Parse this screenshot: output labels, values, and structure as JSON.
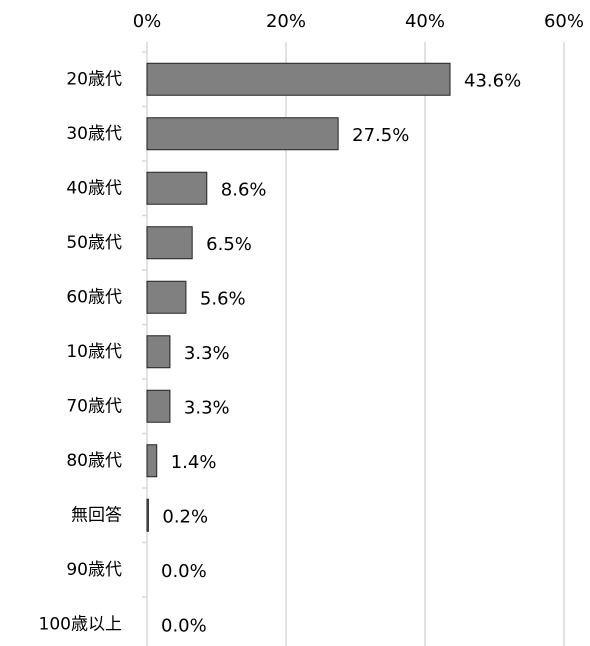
{
  "chart_data": {
    "type": "bar",
    "orientation": "horizontal",
    "categories": [
      "20歳代",
      "30歳代",
      "40歳代",
      "50歳代",
      "60歳代",
      "10歳代",
      "70歳代",
      "80歳代",
      "無回答",
      "90歳代",
      "100歳以上"
    ],
    "values": [
      43.6,
      27.5,
      8.6,
      6.5,
      5.6,
      3.3,
      3.3,
      1.4,
      0.2,
      0.0,
      0.0
    ],
    "value_labels": [
      "43.6%",
      "27.5%",
      "8.6%",
      "6.5%",
      "5.6%",
      "3.3%",
      "3.3%",
      "1.4%",
      "0.2%",
      "0.0%",
      "0.0%"
    ],
    "color": "#808080",
    "xlim": [
      0,
      60
    ],
    "xticks": [
      {
        "value": 0,
        "label": "0%"
      },
      {
        "value": 20,
        "label": "20%"
      },
      {
        "value": 40,
        "label": "40%"
      },
      {
        "value": 60,
        "label": "60%"
      }
    ],
    "grid": true
  }
}
